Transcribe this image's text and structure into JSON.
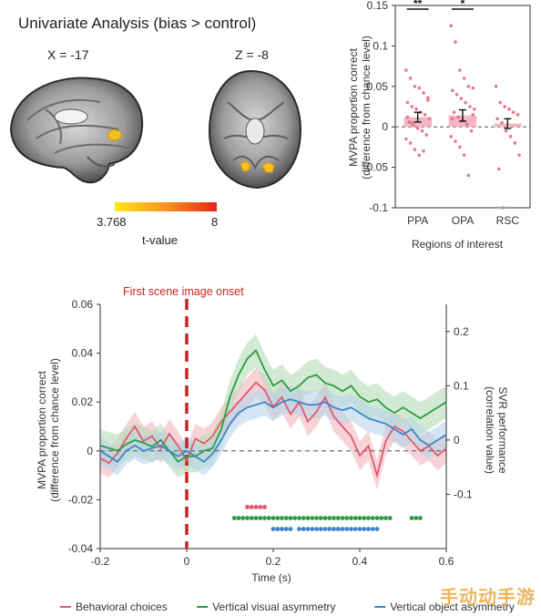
{
  "brain": {
    "title": "Univariate Analysis (bias > control)",
    "sagittal_label": "X = -17",
    "axial_label": "Z = -8",
    "colorbar": {
      "min": "3.768",
      "max": "8",
      "label": "t-value",
      "color_low": "#ffe81a",
      "color_high": "#e8221c"
    }
  },
  "watermark": "手动动手游",
  "chart_data": [
    {
      "type": "bar",
      "title": "",
      "xlabel": "Regions of interest",
      "ylabel": "MVPA proportion correct\n(difference from chance level)",
      "categories": [
        "PPA",
        "OPA",
        "RSC"
      ],
      "values": [
        0.012,
        0.014,
        0.004
      ],
      "errors": [
        0.006,
        0.007,
        0.006
      ],
      "significance": [
        "**",
        "*",
        ""
      ],
      "ylim": [
        -0.1,
        0.15
      ],
      "yticks": [
        "0.15",
        "0.1",
        "0.05",
        "0",
        "-0.05",
        "-0.1"
      ],
      "bar_color": "#f3b6c2",
      "point_color": "#e8788f",
      "points": [
        [
          0.07,
          0.06,
          0.05,
          0.048,
          0.042,
          0.036,
          0.03,
          0.025,
          0.022,
          0.018,
          0.015,
          0.01,
          0.006,
          0.002,
          -0.002,
          -0.005,
          -0.01,
          -0.015,
          -0.02,
          -0.028,
          -0.035,
          -0.03,
          0.033,
          0.012,
          0.005
        ],
        [
          0.125,
          0.105,
          0.07,
          0.06,
          0.05,
          0.048,
          0.045,
          0.04,
          0.035,
          0.03,
          0.025,
          0.022,
          0.018,
          0.012,
          0.008,
          0.003,
          -0.005,
          -0.012,
          -0.018,
          -0.025,
          -0.035,
          -0.06,
          0.015,
          0.01
        ],
        [
          0.05,
          0.03,
          0.025,
          0.022,
          0.018,
          0.015,
          0.01,
          0.005,
          -0.005,
          -0.012,
          -0.02,
          -0.035,
          -0.052,
          -0.1
        ]
      ],
      "zero_line": "dashed"
    },
    {
      "type": "line",
      "title": "",
      "xlabel": "Time (s)",
      "ylabel": "MVPA proportion correct\n(difference from chance level)",
      "y2label": "SVR performance\n(correlation value)",
      "xlim": [
        -0.2,
        0.6
      ],
      "ylim": [
        -0.04,
        0.06
      ],
      "y2lim": [
        -0.2,
        0.25
      ],
      "xticks": [
        "-0.2",
        "0",
        "0.2",
        "0.4",
        "0.6"
      ],
      "yticks": [
        "0.06",
        "0.04",
        "0.02",
        "0",
        "-0.02",
        "-0.04"
      ],
      "y2ticks": [
        "0.2",
        "0.1",
        "0",
        "-0.1"
      ],
      "onset": {
        "x": 0.0,
        "label": "First scene image onset",
        "color": "#cc2222"
      },
      "legend_position": "bottom",
      "series": [
        {
          "name": "Behavioral choices",
          "color": "#e05a6a",
          "band": "#f2b6bd",
          "axis": "left",
          "x": [
            -0.2,
            -0.18,
            -0.16,
            -0.14,
            -0.12,
            -0.1,
            -0.08,
            -0.06,
            -0.04,
            -0.02,
            0,
            0.02,
            0.04,
            0.06,
            0.08,
            0.1,
            0.12,
            0.14,
            0.16,
            0.18,
            0.2,
            0.22,
            0.24,
            0.26,
            0.28,
            0.3,
            0.32,
            0.34,
            0.36,
            0.38,
            0.4,
            0.42,
            0.44,
            0.46,
            0.48,
            0.5,
            0.52,
            0.54,
            0.56,
            0.58,
            0.6
          ],
          "y": [
            -0.003,
            -0.005,
            -0.001,
            0.005,
            0.01,
            0.004,
            0.006,
            0.001,
            0.007,
            0.002,
            -0.004,
            0.005,
            0.003,
            0.006,
            0.012,
            0.016,
            0.02,
            0.024,
            0.028,
            0.025,
            0.018,
            0.022,
            0.015,
            0.02,
            0.012,
            0.016,
            0.022,
            0.014,
            0.01,
            0.006,
            -0.002,
            0.002,
            -0.01,
            0.004,
            0.01,
            0.008,
            0.004,
            0.0,
            0.002,
            -0.002,
            0.001
          ],
          "se": 0.006
        },
        {
          "name": "Vertical visual asymmetry",
          "color": "#2f9a44",
          "band": "#b4dcb6",
          "axis": "right",
          "x": [
            -0.2,
            -0.18,
            -0.16,
            -0.14,
            -0.12,
            -0.1,
            -0.08,
            -0.06,
            -0.04,
            -0.02,
            0,
            0.02,
            0.04,
            0.06,
            0.08,
            0.1,
            0.12,
            0.14,
            0.16,
            0.18,
            0.2,
            0.22,
            0.24,
            0.26,
            0.28,
            0.3,
            0.32,
            0.34,
            0.36,
            0.38,
            0.4,
            0.42,
            0.44,
            0.46,
            0.48,
            0.5,
            0.52,
            0.54,
            0.56,
            0.58,
            0.6
          ],
          "y": [
            -0.01,
            -0.015,
            -0.02,
            -0.008,
            0.0,
            -0.005,
            -0.012,
            0.0,
            -0.02,
            -0.04,
            -0.03,
            -0.03,
            -0.02,
            -0.015,
            0.02,
            0.08,
            0.12,
            0.15,
            0.165,
            0.13,
            0.1,
            0.11,
            0.09,
            0.1,
            0.115,
            0.12,
            0.105,
            0.1,
            0.09,
            0.1,
            0.08,
            0.07,
            0.075,
            0.06,
            0.05,
            0.06,
            0.05,
            0.04,
            0.05,
            0.06,
            0.07
          ],
          "se": 0.03
        },
        {
          "name": "Vertical object asymmetry",
          "color": "#3d86c6",
          "band": "#b5d3ea",
          "axis": "right",
          "x": [
            -0.2,
            -0.18,
            -0.16,
            -0.14,
            -0.12,
            -0.1,
            -0.08,
            -0.06,
            -0.04,
            -0.02,
            0,
            0.02,
            0.04,
            0.06,
            0.08,
            0.1,
            0.12,
            0.14,
            0.16,
            0.18,
            0.2,
            0.22,
            0.24,
            0.26,
            0.28,
            0.3,
            0.32,
            0.34,
            0.36,
            0.38,
            0.4,
            0.42,
            0.44,
            0.46,
            0.48,
            0.5,
            0.52,
            0.54,
            0.56,
            0.58,
            0.6
          ],
          "y": [
            -0.02,
            -0.03,
            -0.04,
            -0.02,
            -0.01,
            -0.02,
            -0.015,
            -0.01,
            -0.02,
            -0.03,
            -0.02,
            -0.03,
            -0.04,
            -0.025,
            0.0,
            0.03,
            0.05,
            0.06,
            0.065,
            0.07,
            0.06,
            0.07,
            0.075,
            0.07,
            0.065,
            0.065,
            0.07,
            0.06,
            0.055,
            0.06,
            0.05,
            0.04,
            0.035,
            0.03,
            0.02,
            0.01,
            0.02,
            0.0,
            -0.01,
            0.0,
            0.01
          ],
          "se": 0.025
        }
      ],
      "significance_rows": [
        {
          "series": "Behavioral choices",
          "y": -0.023,
          "ranges": [
            [
              0.14,
              0.18
            ]
          ]
        },
        {
          "series": "Vertical visual asymmetry",
          "y": -0.0275,
          "ranges": [
            [
              0.11,
              0.47
            ],
            [
              0.52,
              0.54
            ]
          ]
        },
        {
          "series": "Vertical object asymmetry",
          "y": -0.032,
          "ranges": [
            [
              0.2,
              0.24
            ],
            [
              0.26,
              0.44
            ]
          ]
        }
      ]
    }
  ]
}
